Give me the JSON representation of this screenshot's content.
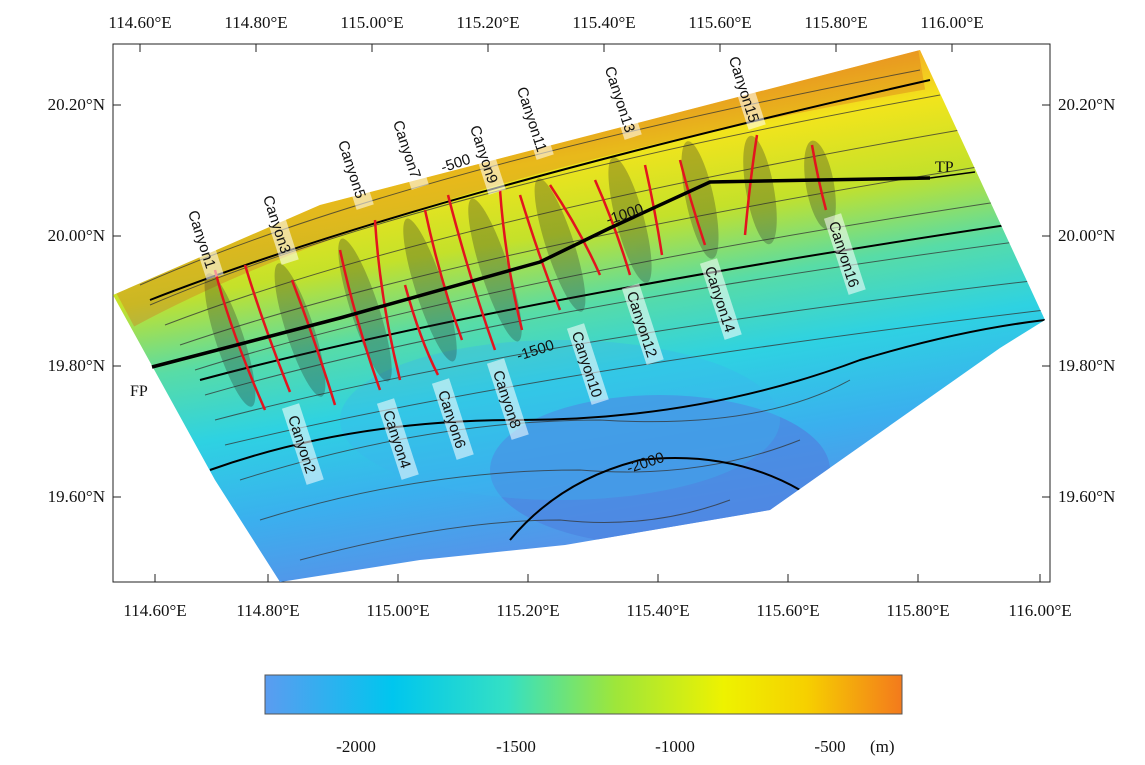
{
  "map": {
    "x_ticks": [
      "114.60°E",
      "114.80°E",
      "115.00°E",
      "115.20°E",
      "115.40°E",
      "115.60°E",
      "115.80°E",
      "116.00°E"
    ],
    "y_ticks": [
      "20.20°N",
      "20.00°N",
      "19.80°N",
      "19.60°N"
    ],
    "x_range": [
      114.57,
      116.02
    ],
    "y_range": [
      19.46,
      20.29
    ],
    "canyons": [
      {
        "label": "Canyon1"
      },
      {
        "label": "Canyon2"
      },
      {
        "label": "Canyon3"
      },
      {
        "label": "Canyon4"
      },
      {
        "label": "Canyon5"
      },
      {
        "label": "Canyon6"
      },
      {
        "label": "Canyon7"
      },
      {
        "label": "Canyon8"
      },
      {
        "label": "Canyon9"
      },
      {
        "label": "Canyon10"
      },
      {
        "label": "Canyon11"
      },
      {
        "label": "Canyon12"
      },
      {
        "label": "Canyon13"
      },
      {
        "label": "Canyon14"
      },
      {
        "label": "Canyon15"
      },
      {
        "label": "Canyon16"
      }
    ],
    "contour_labels": [
      "-500",
      "-1000",
      "-1500",
      "-2000"
    ],
    "line_labels": {
      "start": "FP",
      "end": "TP"
    },
    "colors": {
      "deep": "#5b9cf0",
      "mid": "#2fd6e8",
      "shelf": "#f2ee1e",
      "shallow": "#ee7a1e",
      "canyon_axis": "#e3141e",
      "profile_line": "#000000"
    }
  },
  "colorbar": {
    "tick_labels": [
      "-2000",
      "-1500",
      "-1000",
      "-500"
    ],
    "unit": "(m)",
    "range": [
      -2300,
      -300
    ],
    "stops": [
      "#5b9cf0",
      "#00c6ee",
      "#34e0c4",
      "#9ee63a",
      "#eef200",
      "#f6d000",
      "#f37a1c"
    ]
  }
}
